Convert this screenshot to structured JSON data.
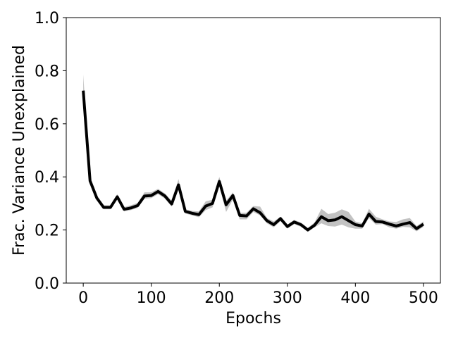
{
  "chart_data": {
    "type": "line",
    "title": "",
    "xlabel": "Epochs",
    "ylabel": "Frac. Variance Unexplained",
    "xlim": [
      -25,
      525
    ],
    "ylim": [
      0.0,
      1.0
    ],
    "xticks": [
      0,
      100,
      200,
      300,
      400,
      500
    ],
    "xtick_labels": [
      "0",
      "100",
      "200",
      "300",
      "400",
      "500"
    ],
    "yticks": [
      0.0,
      0.2,
      0.4,
      0.6,
      0.8,
      1.0
    ],
    "ytick_labels": [
      "0.0",
      "0.2",
      "0.4",
      "0.6",
      "0.8",
      "1.0"
    ],
    "grid": false,
    "legend": false,
    "line_color": "#000000",
    "band_color": "#bfbfbf",
    "series": [
      {
        "x": [
          0,
          10,
          20,
          30,
          40,
          50,
          60,
          70,
          80,
          90,
          100,
          110,
          120,
          130,
          140,
          150,
          160,
          170,
          180,
          190,
          200,
          210,
          220,
          230,
          240,
          250,
          260,
          270,
          280,
          290,
          300,
          310,
          320,
          330,
          340,
          350,
          360,
          370,
          380,
          390,
          400,
          410,
          420,
          430,
          440,
          450,
          460,
          470,
          480,
          490,
          500
        ],
        "values": [
          0.725,
          0.385,
          0.32,
          0.285,
          0.285,
          0.325,
          0.278,
          0.283,
          0.292,
          0.328,
          0.33,
          0.345,
          0.328,
          0.298,
          0.37,
          0.27,
          0.263,
          0.258,
          0.29,
          0.3,
          0.383,
          0.295,
          0.33,
          0.255,
          0.253,
          0.28,
          0.265,
          0.235,
          0.22,
          0.243,
          0.213,
          0.23,
          0.22,
          0.2,
          0.218,
          0.25,
          0.235,
          0.238,
          0.25,
          0.235,
          0.22,
          0.215,
          0.26,
          0.232,
          0.23,
          0.222,
          0.215,
          0.222,
          0.228,
          0.205,
          0.222
        ],
        "lower": [
          0.67,
          0.375,
          0.312,
          0.278,
          0.278,
          0.315,
          0.27,
          0.275,
          0.283,
          0.318,
          0.32,
          0.335,
          0.318,
          0.288,
          0.355,
          0.262,
          0.255,
          0.248,
          0.275,
          0.285,
          0.365,
          0.268,
          0.315,
          0.24,
          0.24,
          0.268,
          0.255,
          0.225,
          0.21,
          0.233,
          0.205,
          0.222,
          0.212,
          0.193,
          0.21,
          0.225,
          0.215,
          0.213,
          0.22,
          0.21,
          0.205,
          0.205,
          0.245,
          0.22,
          0.222,
          0.21,
          0.205,
          0.212,
          0.21,
          0.195,
          0.212
        ],
        "upper": [
          0.785,
          0.395,
          0.33,
          0.293,
          0.293,
          0.335,
          0.286,
          0.293,
          0.302,
          0.342,
          0.342,
          0.355,
          0.338,
          0.31,
          0.392,
          0.278,
          0.272,
          0.27,
          0.308,
          0.314,
          0.4,
          0.31,
          0.342,
          0.265,
          0.265,
          0.29,
          0.288,
          0.245,
          0.232,
          0.25,
          0.22,
          0.238,
          0.228,
          0.208,
          0.228,
          0.28,
          0.26,
          0.265,
          0.278,
          0.268,
          0.232,
          0.225,
          0.28,
          0.25,
          0.24,
          0.232,
          0.23,
          0.24,
          0.245,
          0.215,
          0.232
        ]
      }
    ]
  }
}
